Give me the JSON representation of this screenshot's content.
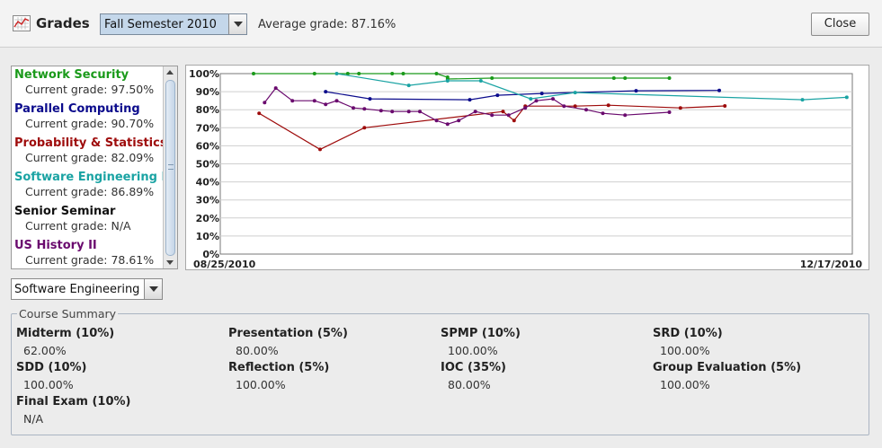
{
  "window": {
    "title": "Grades",
    "icon": "grade-chart-icon"
  },
  "header": {
    "semester_selected": "Fall Semester 2010",
    "average_grade_text": "Average grade: 87.16%",
    "close_label": "Close"
  },
  "courses": [
    {
      "name": "Network Security",
      "grade_text": "Current grade: 97.50%",
      "color": "#1a9a1a"
    },
    {
      "name": "Parallel Computing",
      "grade_text": "Current grade: 90.70%",
      "color": "#0b0b8c"
    },
    {
      "name": "Probability & Statistics I",
      "grade_text": "Current grade: 82.09%",
      "color": "#9e0b0b"
    },
    {
      "name": "Software Engineering I",
      "grade_text": "Current grade: 86.89%",
      "color": "#1aa3a3"
    },
    {
      "name": "Senior Seminar",
      "grade_text": "Current grade: N/A",
      "color": "#111111"
    },
    {
      "name": "US History II",
      "grade_text": "Current grade: 78.61%",
      "color": "#6a0a6e"
    }
  ],
  "course_selector": {
    "selected": "Software Engineering I"
  },
  "summary": {
    "title": "Course Summary",
    "items": [
      {
        "label": "Midterm (10%)",
        "value": "62.00%"
      },
      {
        "label": "Presentation (5%)",
        "value": "80.00%"
      },
      {
        "label": "SPMP (10%)",
        "value": "100.00%"
      },
      {
        "label": "SRD (10%)",
        "value": "100.00%"
      },
      {
        "label": "SDD (10%)",
        "value": "100.00%"
      },
      {
        "label": "Reflection (5%)",
        "value": "100.00%"
      },
      {
        "label": "IOC (35%)",
        "value": "80.00%"
      },
      {
        "label": "Group Evaluation (5%)",
        "value": "100.00%"
      },
      {
        "label": "Final Exam (10%)",
        "value": "N/A"
      }
    ]
  },
  "chart_data": {
    "type": "line",
    "x_start_label": "08/25/2010",
    "x_end_label": "12/17/2010",
    "y_ticks": [
      "0%",
      "10%",
      "20%",
      "30%",
      "40%",
      "50%",
      "60%",
      "70%",
      "80%",
      "90%",
      "100%"
    ],
    "ylim": [
      0,
      100
    ],
    "xlim": [
      "2010-08-25",
      "2010-12-17"
    ],
    "grid": true,
    "series": [
      {
        "name": "Network Security",
        "color": "#1a9a1a",
        "points": [
          [
            "2010-08-31",
            100
          ],
          [
            "2010-09-11",
            100
          ],
          [
            "2010-09-17",
            100
          ],
          [
            "2010-09-19",
            100
          ],
          [
            "2010-09-25",
            100
          ],
          [
            "2010-09-27",
            100
          ],
          [
            "2010-10-03",
            100
          ],
          [
            "2010-10-05",
            98
          ],
          [
            "2010-10-05",
            97
          ],
          [
            "2010-10-13",
            97.5
          ],
          [
            "2010-11-04",
            97.5
          ],
          [
            "2010-11-06",
            97.5
          ],
          [
            "2010-11-14",
            97.5
          ]
        ]
      },
      {
        "name": "Parallel Computing",
        "color": "#0b0b8c",
        "points": [
          [
            "2010-09-13",
            90
          ],
          [
            "2010-09-21",
            86
          ],
          [
            "2010-10-09",
            85.5
          ],
          [
            "2010-10-14",
            88
          ],
          [
            "2010-10-22",
            89
          ],
          [
            "2010-11-08",
            90.5
          ],
          [
            "2010-11-23",
            90.7
          ]
        ]
      },
      {
        "name": "Probability & Statistics I",
        "color": "#9e0b0b",
        "points": [
          [
            "2010-09-01",
            78
          ],
          [
            "2010-09-12",
            58
          ],
          [
            "2010-09-20",
            70
          ],
          [
            "2010-10-15",
            79
          ],
          [
            "2010-10-17",
            74
          ],
          [
            "2010-10-19",
            82
          ],
          [
            "2010-10-28",
            82
          ],
          [
            "2010-11-03",
            82.5
          ],
          [
            "2010-11-16",
            81
          ],
          [
            "2010-11-24",
            82.09
          ]
        ]
      },
      {
        "name": "Software Engineering I",
        "color": "#1aa3a3",
        "points": [
          [
            "2010-09-15",
            100
          ],
          [
            "2010-09-28",
            93.5
          ],
          [
            "2010-10-05",
            96
          ],
          [
            "2010-10-11",
            96
          ],
          [
            "2010-10-20",
            86
          ],
          [
            "2010-10-28",
            89.5
          ],
          [
            "2010-12-08",
            85.5
          ],
          [
            "2010-12-16",
            86.89
          ]
        ]
      },
      {
        "name": "US History II",
        "color": "#6a0a6e",
        "points": [
          [
            "2010-09-02",
            84
          ],
          [
            "2010-09-04",
            92
          ],
          [
            "2010-09-07",
            85
          ],
          [
            "2010-09-11",
            85
          ],
          [
            "2010-09-13",
            83
          ],
          [
            "2010-09-15",
            85
          ],
          [
            "2010-09-18",
            81
          ],
          [
            "2010-09-20",
            80.5
          ],
          [
            "2010-09-23",
            79.5
          ],
          [
            "2010-09-25",
            79
          ],
          [
            "2010-09-28",
            79
          ],
          [
            "2010-09-30",
            79
          ],
          [
            "2010-10-03",
            74
          ],
          [
            "2010-10-05",
            72
          ],
          [
            "2010-10-07",
            74
          ],
          [
            "2010-10-10",
            79
          ],
          [
            "2010-10-13",
            77
          ],
          [
            "2010-10-16",
            77
          ],
          [
            "2010-10-19",
            81
          ],
          [
            "2010-10-21",
            85
          ],
          [
            "2010-10-24",
            86
          ],
          [
            "2010-10-26",
            82
          ],
          [
            "2010-10-30",
            80
          ],
          [
            "2010-11-02",
            78
          ],
          [
            "2010-11-06",
            77
          ],
          [
            "2010-11-14",
            78.61
          ]
        ]
      }
    ]
  }
}
